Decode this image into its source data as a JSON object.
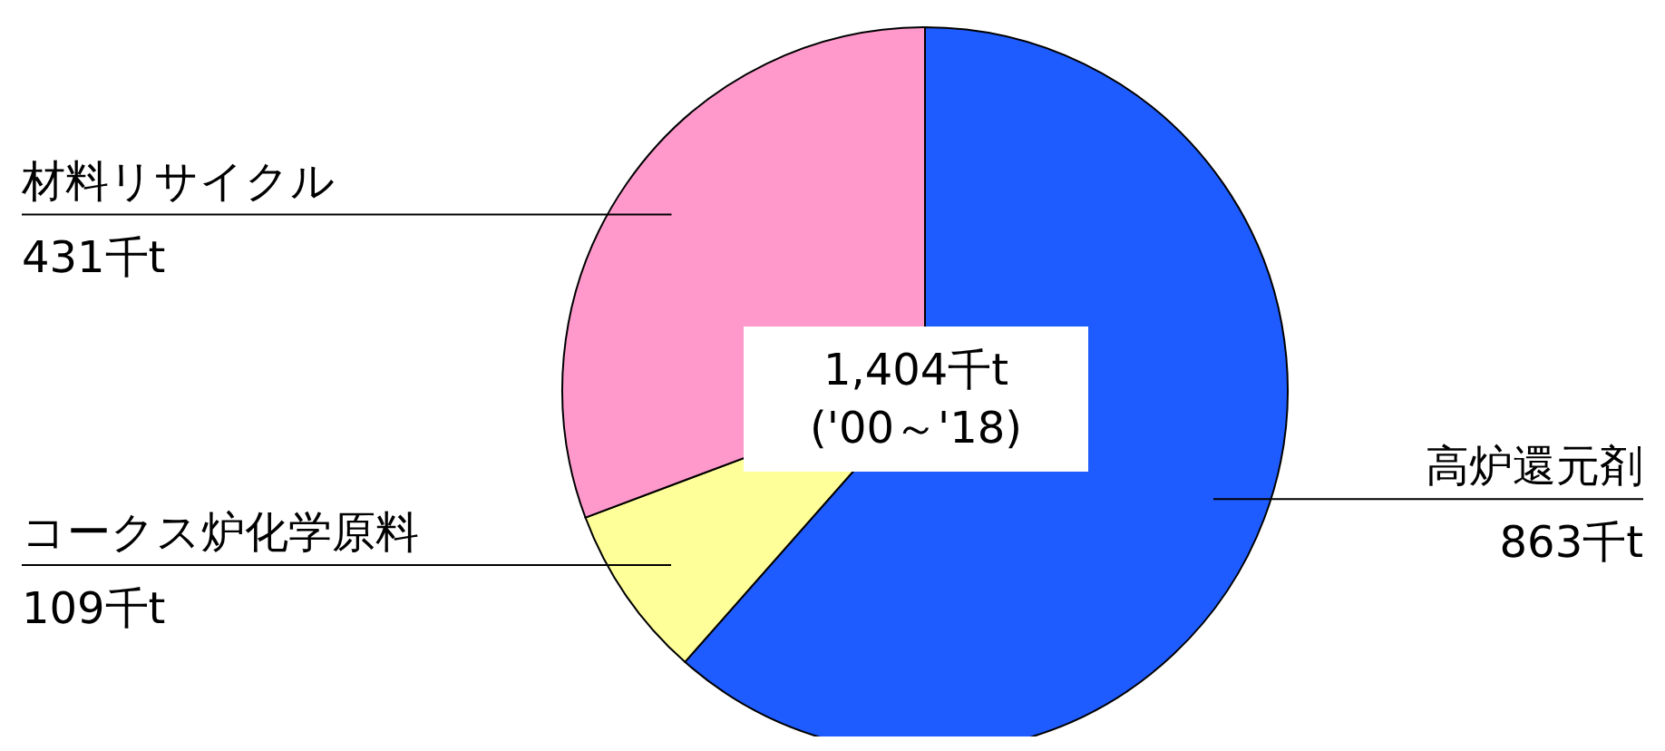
{
  "chart_data": {
    "type": "pie",
    "categories": [
      "高炉還元剤",
      "コークス炉化学原料",
      "材料リサイクル"
    ],
    "values": [
      863,
      109,
      431
    ],
    "value_labels": [
      "863千t",
      "109千t",
      "431千t"
    ],
    "colors": [
      "#1f5cff",
      "#ffff99",
      "#ff99cc"
    ],
    "annotations": [
      "1,404千t",
      "('00～'18)"
    ]
  }
}
